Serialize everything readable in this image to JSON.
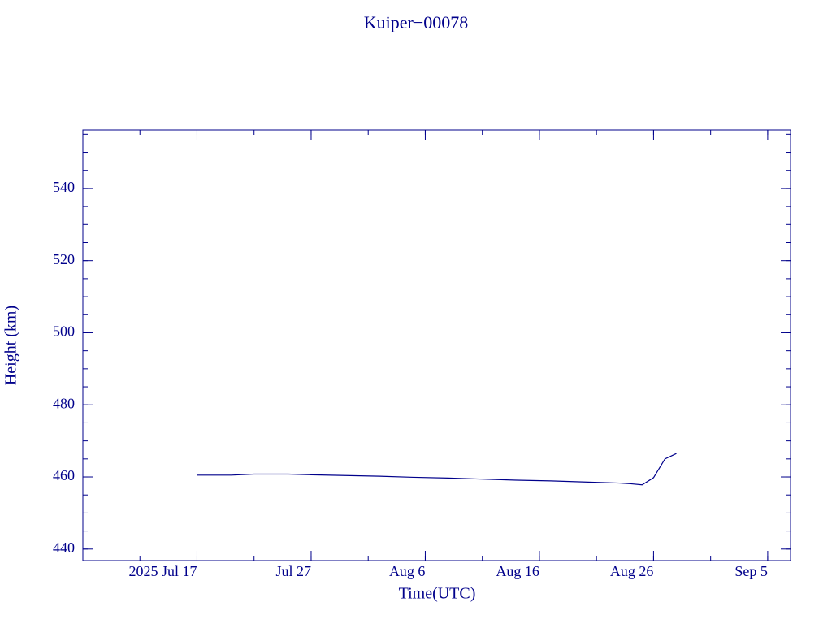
{
  "chart_data": {
    "type": "line",
    "title": "Kuiper−00078",
    "x_label": "Time(UTC)",
    "y_label": "Height (km)",
    "x": [
      "2025-07-17",
      "2025-07-20",
      "2025-07-22",
      "2025-07-25",
      "2025-07-27",
      "2025-07-30",
      "2025-08-02",
      "2025-08-05",
      "2025-08-08",
      "2025-08-11",
      "2025-08-14",
      "2025-08-17",
      "2025-08-20",
      "2025-08-23",
      "2025-08-24",
      "2025-08-25",
      "2025-08-26",
      "2025-08-27",
      "2025-08-28"
    ],
    "series": [
      {
        "name": "Height",
        "color": "#00008b",
        "values": [
          460.5,
          460.5,
          460.8,
          460.8,
          460.6,
          460.4,
          460.2,
          459.9,
          459.7,
          459.4,
          459.1,
          458.9,
          458.6,
          458.3,
          458.1,
          457.8,
          459.8,
          465.0,
          466.5
        ]
      }
    ],
    "xlim": [
      "2025-07-07",
      "2025-09-07"
    ],
    "xticks": [
      {
        "value": "2025-07-17",
        "label": "2025 Jul 17"
      },
      {
        "value": "2025-07-27",
        "label": "Jul 27"
      },
      {
        "value": "2025-08-06",
        "label": "Aug  6"
      },
      {
        "value": "2025-08-16",
        "label": "Aug 16"
      },
      {
        "value": "2025-08-26",
        "label": "Aug 26"
      },
      {
        "value": "2025-09-05",
        "label": "Sep  5"
      }
    ],
    "ylim": [
      436.8,
      556.2
    ],
    "yticks": [
      440,
      460,
      480,
      500,
      520,
      540
    ]
  }
}
